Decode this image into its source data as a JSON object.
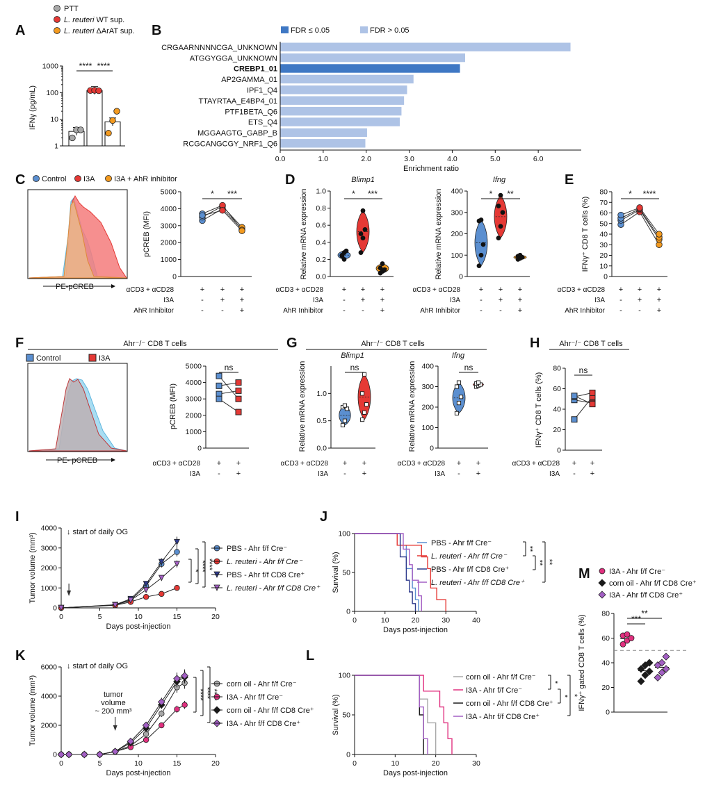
{
  "colors": {
    "blue": "#5b8fd0",
    "red": "#e53935",
    "orange": "#f39a1f",
    "grey": "#a8a8a8",
    "dark_blue": "#2e3a8c",
    "purple": "#a35fc4",
    "magenta": "#e0307f",
    "bar_sig": "#3f78c4",
    "bar_ns": "#aec3e6",
    "black": "#1a1a1a"
  },
  "panels": {
    "A": "A",
    "B": "B",
    "C": "C",
    "D": "D",
    "E": "E",
    "F": "F",
    "G": "G",
    "H": "H",
    "I": "I",
    "J": "J",
    "K": "K",
    "L": "L",
    "M": "M"
  },
  "common": {
    "stim": "αCD3 + αCD28",
    "i3a": "I3A",
    "ahr_inh": "AhR Inhibitor",
    "plus": "+",
    "minus": "-",
    "ns": "ns",
    "rel_mrna": "Relative mRNA expression",
    "ifng_pct": "IFNγ⁺ CD8 T cells (%)",
    "pcreb_mfi": "pCREB (MFI)",
    "ahr_ko_title": "Ahr⁻/⁻ CD8 T cells",
    "blimp1": "Blimp1",
    "ifng": "Ifng",
    "tumor_vol": "Tumor volume (mm³)",
    "days": "Days post-injection",
    "survival": "Survival (%)",
    "daily_og": "↓ start of daily OG"
  },
  "chart_data": [
    {
      "id": "A",
      "type": "bar",
      "ylabel": "IFNγ (pg/mL)",
      "yscale": "log",
      "ylim": [
        1,
        1000
      ],
      "yticks": [
        "1",
        "10",
        "100",
        "1000"
      ],
      "legend": [
        "PTT",
        "L. reuteri WT sup.",
        "L. reuteri ΔArAT sup."
      ],
      "categories": [
        "PTT",
        "L. reuteri WT sup.",
        "L. reuteri ΔArAT sup."
      ],
      "values": [
        3.5,
        120,
        8
      ],
      "points": [
        [
          2,
          4,
          4
        ],
        [
          120,
          122,
          118
        ],
        [
          3,
          9,
          20
        ]
      ],
      "stars": [
        "****",
        "****"
      ]
    },
    {
      "id": "B",
      "type": "bar",
      "orientation": "horizontal",
      "xlabel": "Enrichment ratio",
      "xlim": [
        0,
        7
      ],
      "xticks": [
        "0.0",
        "1.0",
        "2.0",
        "3.0",
        "4.0",
        "5.0",
        "6.0"
      ],
      "legend": [
        "FDR ≤ 0.05",
        "FDR > 0.05"
      ],
      "categories": [
        "CRGAARNNNNCGA_UNKNOWN",
        "ATGGYGGA_UNKNOWN",
        "CREBP1_01",
        "AP2GAMMA_01",
        "IPF1_Q4",
        "TTAYRTAA_E4BP4_01",
        "PTF1BETA_Q6",
        "ETS_Q4",
        "MGGAAGTG_GABP_B",
        "RCGCANGCGY_NRF1_Q6"
      ],
      "values": [
        6.75,
        4.3,
        4.18,
        3.1,
        2.95,
        2.88,
        2.82,
        2.78,
        2.02,
        1.98
      ],
      "significant": [
        "CREBP1_01"
      ]
    },
    {
      "id": "C-hist",
      "type": "area",
      "xlabel": "PE-pCREB",
      "legend": [
        "Control",
        "I3A",
        "I3A + AhR inhibitor"
      ]
    },
    {
      "id": "C",
      "type": "scatter",
      "ylabel": "pCREB (MFI)",
      "ylim": [
        0,
        5000
      ],
      "yticks": [
        "0",
        "1000",
        "2000",
        "3000",
        "4000",
        "5000"
      ],
      "groups": [
        "Control",
        "I3A",
        "I3A + AhR inhibitor"
      ],
      "paired": [
        [
          3300,
          4000,
          2800
        ],
        [
          3500,
          4150,
          2900
        ],
        [
          3700,
          4200,
          2750
        ],
        [
          3600,
          3900,
          2700
        ]
      ],
      "stars": [
        "*",
        "***"
      ]
    },
    {
      "id": "D-Blimp1",
      "type": "scatter",
      "title": "Blimp1",
      "ylabel": "Relative mRNA expression",
      "ylim": [
        0,
        1.0
      ],
      "yticks": [
        "0.0",
        "0.2",
        "0.4",
        "0.6",
        "0.8",
        "1.0"
      ],
      "points": [
        [
          0.24,
          0.28,
          0.3,
          0.25,
          0.2
        ],
        [
          0.28,
          0.45,
          0.55,
          0.5,
          0.77
        ],
        [
          0.04,
          0.06,
          0.08,
          0.1,
          0.15
        ]
      ],
      "stars": [
        "*",
        "***"
      ]
    },
    {
      "id": "D-Ifng",
      "type": "scatter",
      "title": "Ifng",
      "ylabel": "Relative mRNA expression",
      "ylim": [
        0,
        400
      ],
      "yticks": [
        "0",
        "100",
        "200",
        "300",
        "400"
      ],
      "points": [
        [
          50,
          100,
          150,
          260,
          265
        ],
        [
          180,
          235,
          300,
          330,
          380
        ],
        [
          80,
          85,
          90,
          95,
          100
        ]
      ],
      "stars": [
        "*",
        "**"
      ]
    },
    {
      "id": "E",
      "type": "scatter",
      "ylabel": "IFNγ⁺ CD8 T cells (%)",
      "ylim": [
        0,
        80
      ],
      "yticks": [
        "0",
        "10",
        "20",
        "30",
        "40",
        "50",
        "60",
        "70",
        "80"
      ],
      "paired": [
        [
          49,
          61,
          30
        ],
        [
          53,
          63,
          35
        ],
        [
          55,
          64,
          37
        ],
        [
          58,
          65,
          40
        ]
      ],
      "stars": [
        "*",
        "****"
      ]
    },
    {
      "id": "F-hist",
      "type": "area",
      "xlabel": "PE- pCREB",
      "legend": [
        "Control",
        "I3A"
      ]
    },
    {
      "id": "F",
      "type": "scatter",
      "ylabel": "pCREB (MFI)",
      "ylim": [
        0,
        5000
      ],
      "yticks": [
        "0",
        "1000",
        "2000",
        "3000",
        "4000",
        "5000"
      ],
      "paired": [
        [
          4400,
          3000
        ],
        [
          3800,
          4000
        ],
        [
          3300,
          3500
        ],
        [
          3000,
          2200
        ]
      ],
      "stars": [
        "ns"
      ]
    },
    {
      "id": "G-Blimp1",
      "type": "scatter",
      "title": "Blimp1",
      "ylabel": "Relative mRNA expression",
      "ylim": [
        0,
        1.5
      ],
      "yticks": [
        "0.0",
        "0.5",
        "1.0"
      ],
      "points": [
        [
          0.42,
          0.5,
          0.72,
          0.75,
          0.78
        ],
        [
          0.52,
          0.65,
          0.8,
          1.0,
          1.35
        ]
      ],
      "stars": [
        "ns"
      ]
    },
    {
      "id": "G-Ifng",
      "type": "scatter",
      "title": "Ifng",
      "ylabel": "Relative mRNA expression",
      "ylim": [
        0,
        400
      ],
      "yticks": [
        "0",
        "100",
        "200",
        "300",
        "400"
      ],
      "points": [
        [
          170,
          220,
          250,
          300,
          320
        ],
        [
          300,
          305,
          310,
          315,
          320
        ]
      ],
      "stars": [
        "ns"
      ]
    },
    {
      "id": "H",
      "type": "scatter",
      "ylabel": "IFNγ⁺ CD8 T cells (%)",
      "ylim": [
        0,
        80
      ],
      "yticks": [
        "0",
        "20",
        "40",
        "60",
        "80"
      ],
      "paired": [
        [
          30,
          52
        ],
        [
          49,
          46
        ],
        [
          52,
          56
        ],
        [
          53,
          45
        ]
      ],
      "stars": [
        "ns"
      ]
    },
    {
      "id": "I",
      "type": "line",
      "xlabel": "Days post-injection",
      "ylabel": "Tumor volume (mm³)",
      "xlim": [
        0,
        20
      ],
      "ylim": [
        0,
        4000
      ],
      "xticks": [
        "0",
        "5",
        "10",
        "15",
        "20"
      ],
      "yticks": [
        "0",
        "1000",
        "2000",
        "3000",
        "4000"
      ],
      "x": [
        0,
        7,
        9,
        11,
        13,
        15
      ],
      "series": [
        {
          "name": "PBS - Ahr f/f Cre⁻",
          "values": [
            0,
            150,
            400,
            1100,
            2200,
            2800
          ]
        },
        {
          "name": "L. reuteri - Ahr f/f Cre⁻",
          "values": [
            0,
            130,
            300,
            550,
            700,
            1000
          ]
        },
        {
          "name": "PBS - Ahr f/f CD8 Cre⁺",
          "values": [
            0,
            160,
            450,
            1200,
            2300,
            3300
          ]
        },
        {
          "name": "L. reuteri - Ahr f/f CD8 Cre⁺",
          "values": [
            0,
            140,
            380,
            900,
            1500,
            2200
          ]
        }
      ],
      "stars": [
        "*",
        "****",
        "****"
      ]
    },
    {
      "id": "J",
      "type": "line",
      "xlabel": "Days post-injection",
      "ylabel": "Survival (%)",
      "xlim": [
        0,
        40
      ],
      "ylim": [
        0,
        100
      ],
      "xticks": [
        "0",
        "10",
        "20",
        "30",
        "40"
      ],
      "yticks": [
        "0",
        "50",
        "100"
      ],
      "series": [
        {
          "name": "PBS - Ahr f/f Cre⁻",
          "steps": [
            [
              0,
              100
            ],
            [
              15,
              100
            ],
            [
              15,
              85
            ],
            [
              17,
              85
            ],
            [
              17,
              55
            ],
            [
              19,
              55
            ],
            [
              19,
              30
            ],
            [
              20,
              30
            ],
            [
              20,
              15
            ],
            [
              21,
              15
            ],
            [
              21,
              0
            ]
          ]
        },
        {
          "name": "L. reuteri - Ahr f/f Cre⁻",
          "steps": [
            [
              0,
              100
            ],
            [
              14,
              100
            ],
            [
              14,
              85
            ],
            [
              22,
              85
            ],
            [
              22,
              70
            ],
            [
              24,
              70
            ],
            [
              24,
              55
            ],
            [
              25,
              55
            ],
            [
              25,
              30
            ],
            [
              27,
              30
            ],
            [
              27,
              15
            ],
            [
              30,
              15
            ],
            [
              30,
              0
            ]
          ]
        },
        {
          "name": "PBS - Ahr f/f CD8 Cre⁺",
          "steps": [
            [
              0,
              100
            ],
            [
              15,
              100
            ],
            [
              15,
              70
            ],
            [
              17,
              70
            ],
            [
              17,
              40
            ],
            [
              18,
              40
            ],
            [
              18,
              25
            ],
            [
              19,
              25
            ],
            [
              19,
              10
            ],
            [
              20,
              10
            ],
            [
              20,
              0
            ]
          ]
        },
        {
          "name": "L. reuteri - Ahr f/f CD8 Cre⁺",
          "steps": [
            [
              0,
              100
            ],
            [
              16,
              100
            ],
            [
              16,
              80
            ],
            [
              18,
              80
            ],
            [
              18,
              60
            ],
            [
              19,
              60
            ],
            [
              19,
              40
            ],
            [
              21,
              40
            ],
            [
              21,
              20
            ],
            [
              22,
              20
            ],
            [
              22,
              0
            ]
          ]
        }
      ],
      "stars": [
        "**",
        "**",
        "**"
      ]
    },
    {
      "id": "K",
      "type": "line",
      "xlabel": "Days post-injection",
      "ylabel": "Tumor volume (mm³)",
      "xlim": [
        0,
        20
      ],
      "ylim": [
        0,
        6000
      ],
      "xticks": [
        "0",
        "5",
        "10",
        "15",
        "20"
      ],
      "yticks": [
        "0",
        "2000",
        "4000",
        "6000"
      ],
      "annotation": "tumor volume ~ 200 mm³",
      "x": [
        0,
        1,
        3,
        5,
        7,
        9,
        11,
        13,
        15,
        16
      ],
      "series": [
        {
          "name": "corn oil - Ahr f/f Cre⁻",
          "values": [
            0,
            0,
            0,
            0,
            200,
            600,
            1400,
            2800,
            4600,
            4900
          ]
        },
        {
          "name": "I3A - Ahr f/f Cre⁻",
          "values": [
            0,
            0,
            0,
            0,
            200,
            500,
            1000,
            2000,
            3100,
            3400
          ]
        },
        {
          "name": "corn oil - Ahr f/f CD8 Cre⁺",
          "values": [
            0,
            0,
            0,
            0,
            200,
            800,
            1800,
            3400,
            5000,
            5300
          ]
        },
        {
          "name": "I3A - Ahr f/f CD8 Cre⁺",
          "values": [
            0,
            0,
            0,
            0,
            200,
            900,
            2000,
            3600,
            5200,
            5400
          ]
        }
      ],
      "stars": [
        "****",
        "****",
        "****"
      ]
    },
    {
      "id": "L",
      "type": "line",
      "xlabel": "Days post-injection",
      "ylabel": "Survival (%)",
      "xlim": [
        0,
        30
      ],
      "ylim": [
        0,
        100
      ],
      "xticks": [
        "0",
        "10",
        "20",
        "30"
      ],
      "yticks": [
        "0",
        "50",
        "100"
      ],
      "series": [
        {
          "name": "corn oil - Ahr f/f Cre⁻",
          "steps": [
            [
              0,
              100
            ],
            [
              16,
              100
            ],
            [
              16,
              70
            ],
            [
              18,
              70
            ],
            [
              18,
              40
            ],
            [
              20,
              40
            ],
            [
              20,
              0
            ]
          ]
        },
        {
          "name": "I3A - Ahr f/f Cre⁻",
          "steps": [
            [
              0,
              100
            ],
            [
              17,
              100
            ],
            [
              17,
              80
            ],
            [
              21,
              80
            ],
            [
              21,
              60
            ],
            [
              22,
              60
            ],
            [
              22,
              40
            ],
            [
              23,
              40
            ],
            [
              23,
              20
            ],
            [
              24,
              20
            ],
            [
              24,
              0
            ]
          ]
        },
        {
          "name": "corn oil - Ahr f/f CD8 Cre⁺",
          "steps": [
            [
              0,
              100
            ],
            [
              16,
              100
            ],
            [
              16,
              50
            ],
            [
              17,
              50
            ],
            [
              17,
              0
            ]
          ]
        },
        {
          "name": "I3A - Ahr f/f CD8 Cre⁺",
          "steps": [
            [
              0,
              100
            ],
            [
              16,
              100
            ],
            [
              16,
              60
            ],
            [
              17,
              60
            ],
            [
              17,
              20
            ],
            [
              18,
              20
            ],
            [
              18,
              0
            ]
          ]
        }
      ],
      "stars": [
        "*",
        "*",
        "*"
      ]
    },
    {
      "id": "M",
      "type": "scatter",
      "ylabel": "IFNγ⁺ gated CD8 T cells (%)",
      "ylim": [
        0,
        80
      ],
      "yticks": [
        "0",
        "20",
        "40",
        "60",
        "80"
      ],
      "legend": [
        "I3A - Ahr f/f Cre⁻",
        "corn oil - Ahr f/f CD8 Cre⁺",
        "I3A - Ahr f/f CD8 Cre⁺"
      ],
      "points": [
        [
          55,
          58,
          60,
          62,
          63
        ],
        [
          25,
          30,
          33,
          35,
          38,
          40
        ],
        [
          28,
          32,
          35,
          38,
          40,
          45
        ]
      ],
      "reference_line": 50,
      "stars": [
        "***",
        "**"
      ]
    }
  ]
}
